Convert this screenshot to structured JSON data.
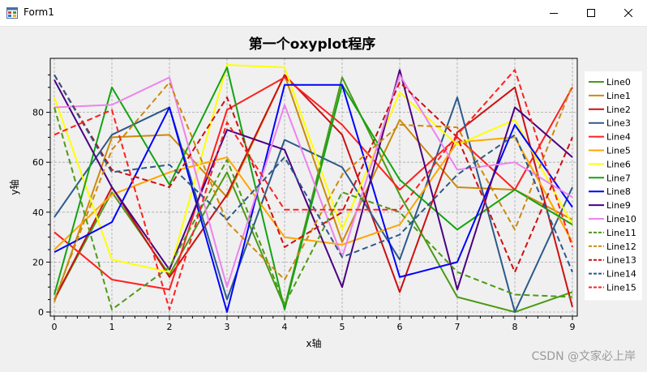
{
  "window": {
    "title": "Form1",
    "icon": "form-app-icon",
    "controls": {
      "minimize": "minimize-icon",
      "maximize": "maximize-icon",
      "close": "close-icon"
    }
  },
  "watermark": "CSDN @文家必上岸",
  "chart_data": {
    "type": "line",
    "title": "第一个oxyplot程序",
    "xlabel": "x轴",
    "ylabel": "y轴",
    "xlim": [
      0,
      9
    ],
    "ylim": [
      0,
      100
    ],
    "xticks": [
      0,
      1,
      2,
      3,
      4,
      5,
      6,
      7,
      8,
      9
    ],
    "yticks": [
      0,
      20,
      40,
      60,
      80
    ],
    "grid": true,
    "legend_position": "right",
    "x": [
      0,
      1,
      2,
      3,
      4,
      5,
      6,
      7,
      8,
      9
    ],
    "series": [
      {
        "name": "Line0",
        "color": "#4c9a16",
        "dash": false,
        "values": [
          5,
          48,
          15,
          56,
          2,
          94,
          47,
          6,
          0,
          8
        ]
      },
      {
        "name": "Line1",
        "color": "#cc8a0b",
        "dash": false,
        "values": [
          4,
          70,
          71,
          46,
          95,
          28,
          77,
          50,
          49,
          37
        ]
      },
      {
        "name": "Line2",
        "color": "#cc1010",
        "dash": false,
        "values": [
          5,
          50,
          14,
          47,
          95,
          71,
          8,
          72,
          90,
          2
        ]
      },
      {
        "name": "Line3",
        "color": "#2c5a8a",
        "dash": false,
        "values": [
          38,
          71,
          82,
          5,
          69,
          58,
          21,
          86,
          0,
          50
        ]
      },
      {
        "name": "Line4",
        "color": "#ff2020",
        "dash": false,
        "values": [
          32,
          13,
          9,
          81,
          94,
          75,
          49,
          70,
          49,
          90
        ]
      },
      {
        "name": "Line5",
        "color": "#ffa500",
        "dash": false,
        "values": [
          25,
          47,
          56,
          62,
          30,
          27,
          35,
          68,
          70,
          28
        ]
      },
      {
        "name": "Line6",
        "color": "#ffff00",
        "dash": false,
        "values": [
          86,
          21,
          16,
          99,
          98,
          33,
          88,
          67,
          77,
          35
        ]
      },
      {
        "name": "Line7",
        "color": "#13a313",
        "dash": false,
        "values": [
          7,
          90,
          51,
          98,
          1,
          91,
          53,
          33,
          49,
          35
        ]
      },
      {
        "name": "Line8",
        "color": "#0000ff",
        "dash": false,
        "values": [
          24,
          36,
          82,
          0,
          91,
          91,
          14,
          20,
          75,
          42
        ]
      },
      {
        "name": "Line9",
        "color": "#4b0082",
        "dash": false,
        "values": [
          93,
          50,
          17,
          73,
          65,
          10,
          97,
          9,
          82,
          62
        ]
      },
      {
        "name": "Line10",
        "color": "#ee82ee",
        "dash": false,
        "values": [
          82,
          83,
          94,
          10,
          83,
          22,
          95,
          57,
          60,
          46
        ]
      },
      {
        "name": "Line11",
        "color": "#4c9a16",
        "dash": true,
        "values": [
          82,
          1,
          18,
          61,
          3,
          48,
          40,
          16,
          7,
          6
        ]
      },
      {
        "name": "Line12",
        "color": "#cc8a0b",
        "dash": true,
        "values": [
          5,
          65,
          92,
          36,
          13,
          55,
          75,
          74,
          33,
          91
        ]
      },
      {
        "name": "Line13",
        "color": "#cc1010",
        "dash": true,
        "values": [
          95,
          57,
          50,
          86,
          26,
          40,
          92,
          70,
          16,
          70
        ]
      },
      {
        "name": "Line14",
        "color": "#2c5a8a",
        "dash": true,
        "values": [
          95,
          56,
          59,
          37,
          62,
          22,
          31,
          55,
          71,
          16
        ]
      },
      {
        "name": "Line15",
        "color": "#ff2020",
        "dash": true,
        "values": [
          71,
          81,
          1,
          76,
          41,
          41,
          41,
          71,
          97,
          26
        ]
      }
    ]
  }
}
